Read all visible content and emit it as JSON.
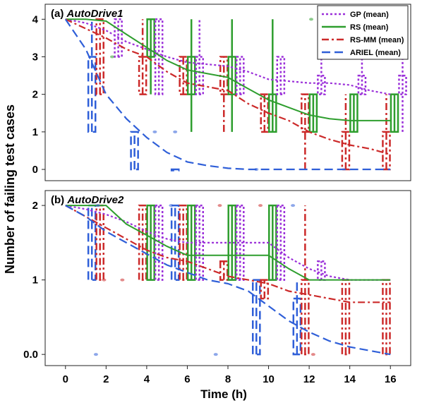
{
  "chart_data": {
    "type": "line",
    "ylabel": "Number of failing test cases",
    "xlabel": "Time (h)",
    "x_ticks": [
      0,
      2,
      4,
      6,
      8,
      10,
      12,
      14,
      16
    ],
    "xlim": [
      -1,
      17
    ],
    "legend": {
      "placement": "top-right",
      "entries": [
        {
          "name": "GP (mean)",
          "color": "#9b30d9",
          "dash": "dot"
        },
        {
          "name": "RS (mean)",
          "color": "#2e9e2e",
          "dash": "solid"
        },
        {
          "name": "RS-MM (mean)",
          "color": "#cc2a2a",
          "dash": "dashdot"
        },
        {
          "name": "ARIEL (mean)",
          "color": "#2f5fd8",
          "dash": "dash"
        }
      ]
    },
    "panels": [
      {
        "title": "(a) AutoDrive1",
        "ylim": [
          -0.3,
          4.4
        ],
        "y_ticks": [
          0,
          1,
          2,
          3,
          4
        ],
        "y_tick_labels": [
          "0",
          "1",
          "2",
          "3",
          "4"
        ],
        "series": [
          {
            "name": "GP (mean)",
            "x": [
              0,
              1,
              2,
              3,
              4,
              5,
              6,
              7,
              8,
              9,
              10,
              11,
              12,
              13,
              14,
              15,
              16
            ],
            "values": [
              4,
              3.9,
              3.7,
              3.4,
              3.2,
              3.0,
              2.85,
              2.8,
              2.75,
              2.6,
              2.4,
              2.35,
              2.3,
              2.3,
              2.25,
              2.1,
              2.0
            ]
          },
          {
            "name": "RS (mean)",
            "x": [
              0,
              1,
              2,
              3,
              4,
              5,
              6,
              7,
              8,
              9,
              10,
              11,
              12,
              13,
              14,
              15,
              16
            ],
            "values": [
              4,
              4.0,
              3.95,
              3.6,
              3.25,
              2.9,
              2.65,
              2.55,
              2.45,
              2.15,
              1.85,
              1.65,
              1.45,
              1.35,
              1.3,
              1.3,
              1.3
            ]
          },
          {
            "name": "RS-MM (mean)",
            "x": [
              0,
              1,
              2,
              3,
              4,
              5,
              6,
              7,
              8,
              9,
              10,
              11,
              12,
              13,
              14,
              15,
              16
            ],
            "values": [
              4,
              3.75,
              3.5,
              3.2,
              3.0,
              2.6,
              2.3,
              2.2,
              2.1,
              1.75,
              1.5,
              1.3,
              1.0,
              0.8,
              0.65,
              0.55,
              0.4
            ]
          },
          {
            "name": "ARIEL (mean)",
            "x": [
              0,
              1,
              2,
              3,
              4,
              5,
              6,
              7,
              8,
              9,
              10,
              11,
              12,
              13,
              14,
              15,
              16
            ],
            "values": [
              4,
              3.2,
              2.0,
              1.35,
              0.85,
              0.45,
              0.2,
              0.1,
              0.03,
              0.0,
              0.0,
              0.0,
              0.0,
              0.0,
              0.0,
              0.0,
              0.0
            ]
          }
        ],
        "boxes": [
          {
            "series": "ARIEL (mean)",
            "x": 1.3,
            "q1": 1,
            "q3": 3,
            "lo": 1,
            "hi": 4
          },
          {
            "series": "RS-MM (mean)",
            "x": 1.7,
            "q1": 2,
            "q3": 4,
            "lo": 2,
            "hi": 4
          },
          {
            "series": "GP (mean)",
            "x": 2.6,
            "q1": 3,
            "q3": 4,
            "lo": 3,
            "hi": 4
          },
          {
            "series": "ARIEL (mean)",
            "x": 3.4,
            "q1": 0,
            "q3": 1,
            "lo": 0,
            "hi": 1
          },
          {
            "series": "RS-MM (mean)",
            "x": 3.8,
            "q1": 2,
            "q3": 3,
            "lo": 2,
            "hi": 4
          },
          {
            "series": "RS (mean)",
            "x": 4.2,
            "q1": 3,
            "q3": 4,
            "lo": 2,
            "hi": 4
          },
          {
            "series": "GP (mean)",
            "x": 4.6,
            "q1": 2,
            "q3": 4,
            "lo": 2,
            "hi": 4
          },
          {
            "series": "ARIEL (mean)",
            "x": 5.4,
            "q1": 0,
            "q3": 0,
            "lo": 0,
            "hi": 0
          },
          {
            "series": "RS-MM (mean)",
            "x": 5.8,
            "q1": 2,
            "q3": 3,
            "lo": 2,
            "hi": 3
          },
          {
            "series": "RS (mean)",
            "x": 6.2,
            "q1": 2,
            "q3": 3,
            "lo": 1,
            "hi": 4
          },
          {
            "series": "GP (mean)",
            "x": 6.6,
            "q1": 2,
            "q3": 3,
            "lo": 2,
            "hi": 4
          },
          {
            "series": "RS-MM (mean)",
            "x": 7.8,
            "q1": 2,
            "q3": 3,
            "lo": 1,
            "hi": 3
          },
          {
            "series": "RS (mean)",
            "x": 8.2,
            "q1": 2,
            "q3": 3,
            "lo": 1,
            "hi": 4
          },
          {
            "series": "GP (mean)",
            "x": 8.6,
            "q1": 2,
            "q3": 3,
            "lo": 2,
            "hi": 3
          },
          {
            "series": "RS-MM (mean)",
            "x": 9.8,
            "q1": 1,
            "q3": 2,
            "lo": 1,
            "hi": 2
          },
          {
            "series": "RS (mean)",
            "x": 10.2,
            "q1": 1,
            "q3": 2,
            "lo": 1,
            "hi": 4
          },
          {
            "series": "GP (mean)",
            "x": 10.6,
            "q1": 2,
            "q3": 3,
            "lo": 2,
            "hi": 3
          },
          {
            "series": "RS-MM (mean)",
            "x": 11.8,
            "q1": 1,
            "q3": 2,
            "lo": 0,
            "hi": 2
          },
          {
            "series": "RS (mean)",
            "x": 12.2,
            "q1": 1,
            "q3": 2,
            "lo": 1,
            "hi": 2
          },
          {
            "series": "GP (mean)",
            "x": 12.6,
            "q1": 2,
            "q3": 2.5,
            "lo": 2,
            "hi": 3
          },
          {
            "series": "RS-MM (mean)",
            "x": 13.8,
            "q1": 0,
            "q3": 1,
            "lo": 0,
            "hi": 2
          },
          {
            "series": "RS (mean)",
            "x": 14.2,
            "q1": 1,
            "q3": 2,
            "lo": 1,
            "hi": 2
          },
          {
            "series": "GP (mean)",
            "x": 14.6,
            "q1": 2,
            "q3": 2.5,
            "lo": 2,
            "hi": 3
          },
          {
            "series": "RS-MM (mean)",
            "x": 15.8,
            "q1": 0,
            "q3": 1,
            "lo": 0,
            "hi": 2
          },
          {
            "series": "RS (mean)",
            "x": 16.2,
            "q1": 1,
            "q3": 2,
            "lo": 1,
            "hi": 2
          },
          {
            "series": "GP (mean)",
            "x": 16.6,
            "q1": 2,
            "q3": 2.5,
            "lo": 1,
            "hi": 3
          }
        ],
        "outliers": [
          {
            "series": "RS (mean)",
            "x": 12.1,
            "y": 4
          },
          {
            "series": "ARIEL (mean)",
            "x": 4.4,
            "y": 1
          },
          {
            "series": "ARIEL (mean)",
            "x": 5.4,
            "y": 1
          },
          {
            "series": "ARIEL (mean)",
            "x": 9.4,
            "y": 0
          },
          {
            "series": "RS (mean)",
            "x": 2.3,
            "y": 3
          }
        ]
      },
      {
        "title": "(b) AutoDrive2",
        "ylim": [
          -0.15,
          2.2
        ],
        "y_ticks": [
          0,
          1,
          2
        ],
        "y_tick_labels": [
          "0.0",
          "1",
          "2"
        ],
        "series": [
          {
            "name": "GP (mean)",
            "x": [
              0,
              1,
              2,
              3,
              4,
              5,
              6,
              7,
              8,
              9,
              10,
              11,
              12,
              13,
              14,
              15,
              16
            ],
            "values": [
              2,
              1.95,
              1.88,
              1.78,
              1.65,
              1.55,
              1.5,
              1.5,
              1.5,
              1.5,
              1.5,
              1.3,
              1.15,
              1.05,
              1.0,
              1.0,
              1.0
            ]
          },
          {
            "name": "RS (mean)",
            "x": [
              0,
              1,
              2,
              3,
              4,
              5,
              6,
              7,
              8,
              9,
              10,
              11,
              12,
              13,
              14,
              15,
              16
            ],
            "values": [
              2,
              2,
              2,
              1.75,
              1.6,
              1.45,
              1.33,
              1.33,
              1.33,
              1.33,
              1.33,
              1.15,
              1.0,
              1.0,
              1.0,
              1.0,
              1.0
            ]
          },
          {
            "name": "RS-MM (mean)",
            "x": [
              0,
              1,
              2,
              3,
              4,
              5,
              6,
              7,
              8,
              9,
              10,
              11,
              12,
              13,
              14,
              15,
              16
            ],
            "values": [
              2,
              1.85,
              1.7,
              1.55,
              1.4,
              1.3,
              1.25,
              1.15,
              1.05,
              1.0,
              0.95,
              0.85,
              0.8,
              0.75,
              0.7,
              0.7,
              0.7
            ]
          },
          {
            "name": "ARIEL (mean)",
            "x": [
              0,
              1,
              2,
              3,
              4,
              5,
              6,
              7,
              8,
              9,
              10,
              11,
              12,
              13,
              14,
              15,
              16
            ],
            "values": [
              2,
              1.85,
              1.65,
              1.5,
              1.35,
              1.2,
              1.1,
              1.0,
              0.95,
              0.85,
              0.65,
              0.45,
              0.3,
              0.18,
              0.1,
              0.05,
              0.0
            ]
          }
        ],
        "boxes": [
          {
            "series": "ARIEL (mean)",
            "x": 1.3,
            "q1": 1,
            "q3": 2,
            "lo": 1,
            "hi": 2
          },
          {
            "series": "RS-MM (mean)",
            "x": 1.7,
            "q1": 1,
            "q3": 2,
            "lo": 1,
            "hi": 2
          },
          {
            "series": "RS-MM (mean)",
            "x": 3.8,
            "q1": 1,
            "q3": 2,
            "lo": 1,
            "hi": 2
          },
          {
            "series": "RS (mean)",
            "x": 4.2,
            "q1": 1,
            "q3": 2,
            "lo": 1,
            "hi": 2
          },
          {
            "series": "GP (mean)",
            "x": 4.6,
            "q1": 1,
            "q3": 2,
            "lo": 1,
            "hi": 2
          },
          {
            "series": "ARIEL (mean)",
            "x": 5.4,
            "q1": 1,
            "q3": 2,
            "lo": 1,
            "hi": 2
          },
          {
            "series": "RS-MM (mean)",
            "x": 5.8,
            "q1": 1,
            "q3": 2,
            "lo": 1,
            "hi": 2
          },
          {
            "series": "RS (mean)",
            "x": 6.2,
            "q1": 1,
            "q3": 2,
            "lo": 1,
            "hi": 2
          },
          {
            "series": "GP (mean)",
            "x": 6.6,
            "q1": 1,
            "q3": 2,
            "lo": 1,
            "hi": 2
          },
          {
            "series": "RS-MM (mean)",
            "x": 7.8,
            "q1": 1,
            "q3": 1.25,
            "lo": 1,
            "hi": 1.25
          },
          {
            "series": "RS (mean)",
            "x": 8.2,
            "q1": 1,
            "q3": 2,
            "lo": 1,
            "hi": 2
          },
          {
            "series": "GP (mean)",
            "x": 8.6,
            "q1": 1,
            "q3": 2,
            "lo": 1,
            "hi": 2
          },
          {
            "series": "ARIEL (mean)",
            "x": 9.4,
            "q1": 0,
            "q3": 1,
            "lo": 0,
            "hi": 1
          },
          {
            "series": "RS-MM (mean)",
            "x": 9.8,
            "q1": 0.75,
            "q3": 1,
            "lo": 0.75,
            "hi": 1
          },
          {
            "series": "RS (mean)",
            "x": 10.2,
            "q1": 1,
            "q3": 2,
            "lo": 1,
            "hi": 2
          },
          {
            "series": "GP (mean)",
            "x": 10.6,
            "q1": 1,
            "q3": 2,
            "lo": 1,
            "hi": 2
          },
          {
            "series": "ARIEL (mean)",
            "x": 11.4,
            "q1": 0,
            "q3": 0.75,
            "lo": 0,
            "hi": 1
          },
          {
            "series": "RS-MM (mean)",
            "x": 11.8,
            "q1": 0,
            "q3": 1,
            "lo": 0,
            "hi": 2
          },
          {
            "series": "GP (mean)",
            "x": 12.6,
            "q1": 1,
            "q3": 1.25,
            "lo": 1,
            "hi": 1.25
          },
          {
            "series": "RS-MM (mean)",
            "x": 13.8,
            "q1": 0,
            "q3": 1,
            "lo": 0,
            "hi": 1
          },
          {
            "series": "RS-MM (mean)",
            "x": 15.8,
            "q1": 0,
            "q3": 1,
            "lo": 0,
            "hi": 1
          }
        ],
        "outliers": [
          {
            "series": "ARIEL (mean)",
            "x": 1.6,
            "y": 2
          },
          {
            "series": "RS-MM (mean)",
            "x": 2.8,
            "y": 1
          },
          {
            "series": "ARIEL (mean)",
            "x": 5.2,
            "y": 2
          },
          {
            "series": "RS-MM (mean)",
            "x": 7.6,
            "y": 2
          },
          {
            "series": "ARIEL (mean)",
            "x": 7.4,
            "y": 0
          },
          {
            "series": "ARIEL (mean)",
            "x": 1.5,
            "y": 0
          },
          {
            "series": "RS-MM (mean)",
            "x": 1.9,
            "y": 1
          },
          {
            "series": "RS-MM (mean)",
            "x": 9.6,
            "y": 2
          },
          {
            "series": "ARIEL (mean)",
            "x": 11.2,
            "y": 2
          },
          {
            "series": "RS-MM (mean)",
            "x": 12.2,
            "y": 0
          }
        ]
      }
    ]
  }
}
